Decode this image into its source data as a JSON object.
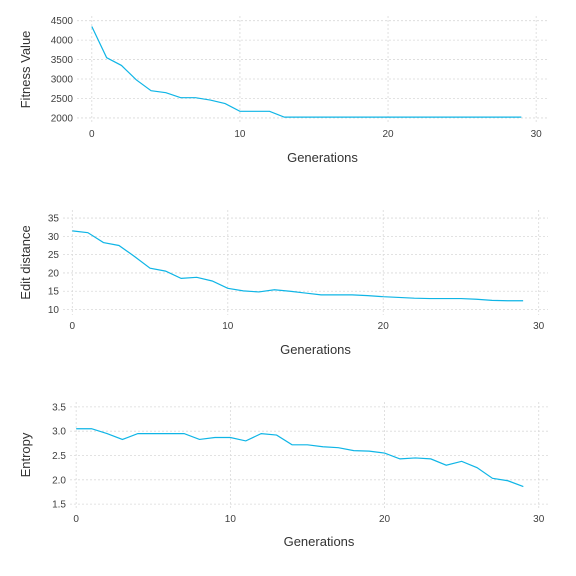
{
  "colors": {
    "series": "#0fb5e6",
    "grid": "#d9d9d9",
    "text": "#404040"
  },
  "chart_data": [
    {
      "type": "line",
      "xlabel": "Generations",
      "ylabel": "Fitness Value",
      "xlim": [
        -1,
        30.8
      ],
      "ylim": [
        1870,
        4620
      ],
      "xticks": [
        0,
        10,
        20,
        30
      ],
      "yticks": [
        2000,
        2500,
        3000,
        3500,
        4000,
        4500
      ],
      "grid": true,
      "series": [
        {
          "x": [
            0,
            1,
            2,
            3,
            4,
            5,
            6,
            7,
            8,
            9,
            10,
            11,
            12,
            13,
            14,
            15,
            16,
            17,
            18,
            19,
            20,
            21,
            22,
            23,
            24,
            25,
            26,
            27,
            28,
            29
          ],
          "values": [
            4350,
            3550,
            3350,
            2980,
            2700,
            2650,
            2520,
            2520,
            2460,
            2370,
            2170,
            2170,
            2170,
            2020,
            2020,
            2020,
            2020,
            2020,
            2020,
            2020,
            2020,
            2020,
            2020,
            2020,
            2020,
            2020,
            2020,
            2020,
            2020,
            2020
          ]
        }
      ]
    },
    {
      "type": "line",
      "xlabel": "Generations",
      "ylabel": "Edit distance",
      "xlim": [
        -0.6,
        30.6
      ],
      "ylim": [
        8.5,
        37.2
      ],
      "xticks": [
        0,
        10,
        20,
        30
      ],
      "yticks": [
        10,
        15,
        20,
        25,
        30,
        35
      ],
      "grid": true,
      "series": [
        {
          "x": [
            0,
            1,
            2,
            3,
            4,
            5,
            6,
            7,
            8,
            9,
            10,
            11,
            12,
            13,
            14,
            15,
            16,
            17,
            18,
            19,
            20,
            21,
            22,
            23,
            24,
            25,
            26,
            27,
            28,
            29
          ],
          "values": [
            31.5,
            31,
            28.3,
            27.5,
            24.5,
            21.3,
            20.5,
            18.5,
            18.8,
            17.8,
            15.8,
            15.1,
            14.8,
            15.4,
            15,
            14.5,
            14,
            14,
            14,
            13.8,
            13.5,
            13.3,
            13.1,
            13,
            13,
            13,
            12.8,
            12.5,
            12.4,
            12.4
          ]
        }
      ]
    },
    {
      "type": "line",
      "xlabel": "Generations",
      "ylabel": "Entropy",
      "xlim": [
        -0.4,
        30.6
      ],
      "ylim": [
        1.42,
        3.6
      ],
      "xticks": [
        0,
        10,
        20,
        30
      ],
      "yticks": [
        1.5,
        2.0,
        2.5,
        3.0,
        3.5
      ],
      "grid": true,
      "series": [
        {
          "x": [
            0,
            1,
            2,
            3,
            4,
            5,
            6,
            7,
            8,
            9,
            10,
            11,
            12,
            13,
            14,
            15,
            16,
            17,
            18,
            19,
            20,
            21,
            22,
            23,
            24,
            25,
            26,
            27,
            28,
            29
          ],
          "values": [
            3.05,
            3.05,
            2.95,
            2.83,
            2.95,
            2.95,
            2.95,
            2.95,
            2.83,
            2.87,
            2.87,
            2.8,
            2.95,
            2.92,
            2.72,
            2.72,
            2.68,
            2.66,
            2.6,
            2.59,
            2.55,
            2.43,
            2.45,
            2.43,
            2.3,
            2.38,
            2.25,
            2.03,
            1.98,
            1.86
          ]
        }
      ]
    }
  ]
}
